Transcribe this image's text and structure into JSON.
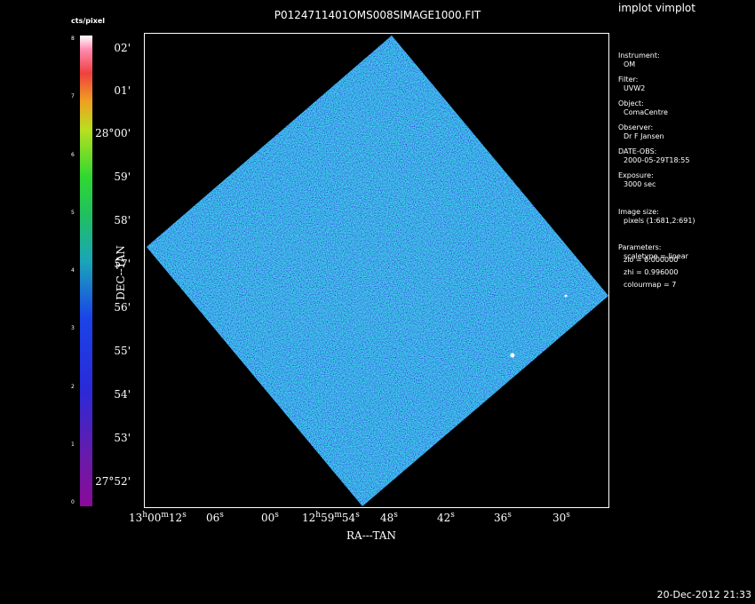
{
  "window": {
    "app_title": "implot vimplot",
    "timestamp": "20-Dec-2012 21:33"
  },
  "plot": {
    "title": "P0124711401OMS008SIMAGE1000.FIT",
    "x_axis_title": "RA---TAN",
    "y_axis_title": "DEC--TAN",
    "y_ticks": [
      "02'",
      "01'",
      "28°00'",
      "59'",
      "58'",
      "57'",
      "56'",
      "55'",
      "54'",
      "53'",
      "27°52'"
    ],
    "x_ticks": [
      {
        "main": "13",
        "h": "h",
        "m_val": "00",
        "m": "m",
        "s_val": "12",
        "s": "s"
      },
      {
        "main": "06",
        "s": "s"
      },
      {
        "main": "00",
        "s": "s"
      },
      {
        "main": "12",
        "h": "h",
        "m_val": "59",
        "m": "m",
        "s_val": "54",
        "s": "s"
      },
      {
        "main": "48",
        "s": "s"
      },
      {
        "main": "42",
        "s": "s"
      },
      {
        "main": "36",
        "s": "s"
      },
      {
        "main": "30",
        "s": "s"
      }
    ]
  },
  "colorbar": {
    "label": "cts/pixel",
    "ticks": [
      "8",
      "7",
      "6",
      "5",
      "4",
      "3",
      "2",
      "1",
      "0"
    ]
  },
  "info_panel": [
    {
      "key": "Instrument:",
      "value": "OM"
    },
    {
      "key": "Filter:",
      "value": "UVW2"
    },
    {
      "key": "Object:",
      "value": "ComaCentre"
    },
    {
      "key": "Observer:",
      "value": "Dr F Jansen"
    },
    {
      "key": "DATE-OBS:",
      "value": "2000-05-29T18:55"
    },
    {
      "key": "Exposure:",
      "value": "3000 sec"
    },
    {
      "key": "Image size:",
      "value": "pixels (1:681,2:691)"
    },
    {
      "key": "Parameters:",
      "value": "scaletype = linear"
    },
    {
      "key": "",
      "value": "zlo = 0.000000"
    },
    {
      "key": "",
      "value": "zhi = 0.996000"
    },
    {
      "key": "",
      "value": "colourmap =   7"
    }
  ],
  "colors": {
    "background": "#000000",
    "image_base": "#1a5ad0",
    "noise_green": "#20c060",
    "frame": "#ffffff"
  }
}
